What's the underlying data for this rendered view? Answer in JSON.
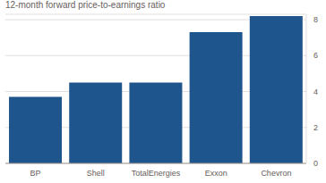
{
  "chart_data": {
    "type": "bar",
    "title": "12-month forward price-to-earnings ratio",
    "categories": [
      "BP",
      "Shell",
      "TotalEnergies",
      "Exxon",
      "Chevron"
    ],
    "values": [
      3.7,
      4.5,
      4.5,
      7.3,
      8.2
    ],
    "color": "#1e558c",
    "ylim": [
      0,
      8.3
    ],
    "yticks": [
      0,
      2,
      4,
      6,
      8
    ],
    "grid": true
  }
}
